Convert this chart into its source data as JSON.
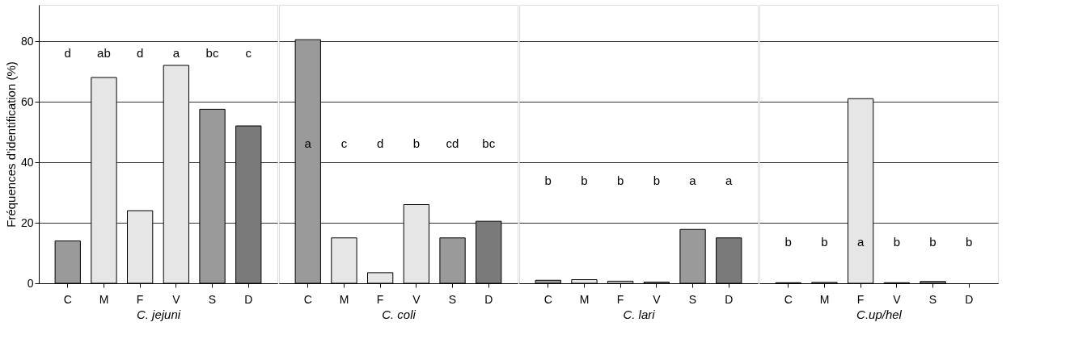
{
  "chart_data": [
    {
      "type": "bar",
      "ylabel": "Fréquences d'identification (%)",
      "xlabel": "C. jejuni",
      "categories": [
        "C",
        "M",
        "F",
        "V",
        "S",
        "D"
      ],
      "values": [
        14,
        68,
        24,
        72,
        57.5,
        52
      ],
      "colors": [
        "#9a9a9a",
        "#e6e6e6",
        "#e6e6e6",
        "#e6e6e6",
        "#9a9a9a",
        "#7a7a7a"
      ],
      "ylim": [
        0,
        92
      ],
      "yticks": [
        0,
        20,
        40,
        60,
        80
      ],
      "grid": "y",
      "annotations": [
        "d",
        "ab",
        "d",
        "a",
        "bc",
        "c"
      ]
    },
    {
      "type": "bar",
      "xlabel": "C. coli",
      "categories": [
        "C",
        "M",
        "F",
        "V",
        "S",
        "D"
      ],
      "values": [
        80.5,
        15,
        3.5,
        26,
        15,
        20.5
      ],
      "colors": [
        "#9a9a9a",
        "#e6e6e6",
        "#e6e6e6",
        "#e6e6e6",
        "#9a9a9a",
        "#7a7a7a"
      ],
      "ylim": [
        0,
        92
      ],
      "yticks": [
        0,
        20,
        40,
        60,
        80
      ],
      "grid": "y",
      "tick_labels": "x",
      "annotations": [
        "a",
        "c",
        "d",
        "b",
        "cd",
        "bc"
      ]
    },
    {
      "type": "bar",
      "xlabel": "C. lari",
      "categories": [
        "C",
        "M",
        "F",
        "V",
        "S",
        "D"
      ],
      "values": [
        1,
        1.2,
        0.7,
        0.4,
        17.8,
        15
      ],
      "colors": [
        "#9a9a9a",
        "#e6e6e6",
        "#e6e6e6",
        "#e6e6e6",
        "#9a9a9a",
        "#7a7a7a"
      ],
      "ylim": [
        0,
        92
      ],
      "yticks": [
        0,
        20,
        40,
        60,
        80
      ],
      "grid": "y",
      "tick_labels": "x",
      "annotations": [
        "b",
        "b",
        "b",
        "b",
        "a",
        "a"
      ]
    },
    {
      "type": "bar",
      "xlabel": "C.up/hel",
      "categories": [
        "C",
        "M",
        "F",
        "V",
        "S",
        "D"
      ],
      "values": [
        0.2,
        0.3,
        61,
        0.2,
        0.6,
        null
      ],
      "colors": [
        "#9a9a9a",
        "#e6e6e6",
        "#e6e6e6",
        "#e6e6e6",
        "#9a9a9a",
        "#7a7a7a"
      ],
      "ylim": [
        0,
        92
      ],
      "yticks": [
        0,
        20,
        40,
        60,
        80
      ],
      "grid": "y",
      "tick_labels": "x",
      "annotations": [
        "b",
        "b",
        "a",
        "b",
        "b",
        "b"
      ]
    }
  ]
}
